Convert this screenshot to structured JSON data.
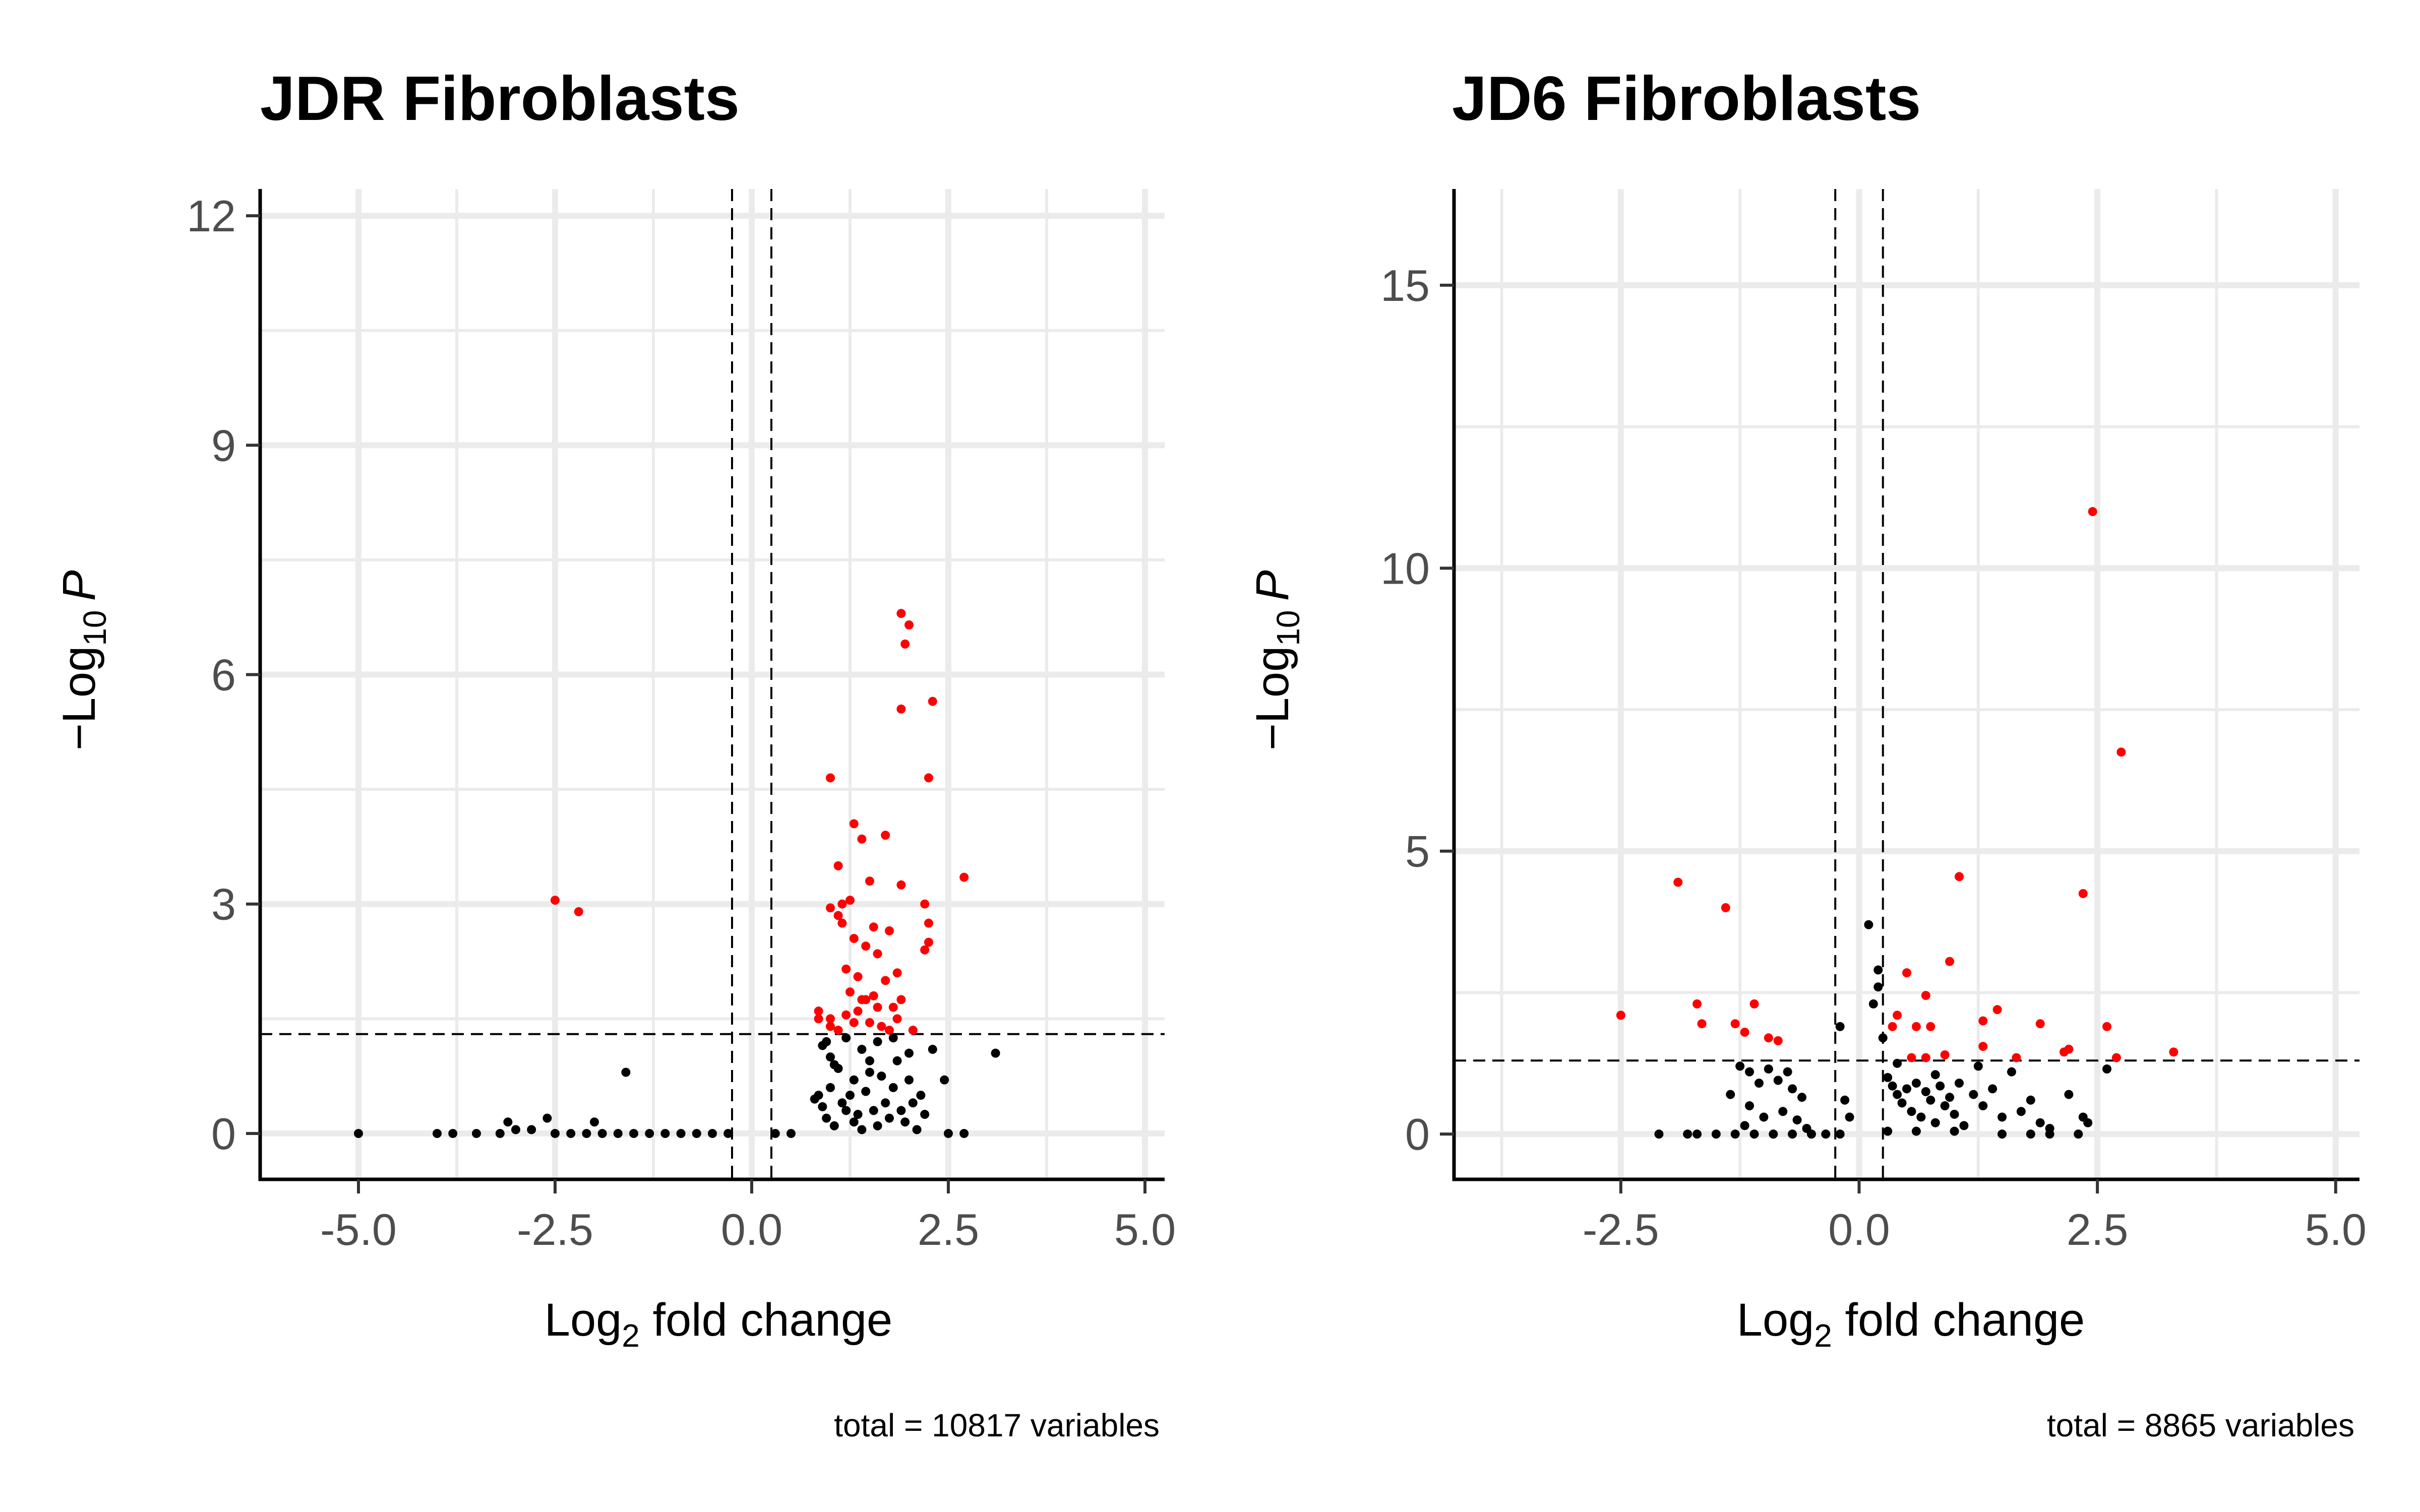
{
  "chart_data": [
    {
      "type": "scatter",
      "title": "JDR Fibroblasts",
      "xlabel_base": "Log",
      "xlabel_sub": "2",
      "xlabel_rest": " fold change",
      "ylabel_prefix": "−Log",
      "ylabel_sub": "10",
      "ylabel_p": "P",
      "caption": "total = 10817 variables",
      "xlim": [
        -6.25,
        5.25
      ],
      "ylim": [
        -0.6,
        12.35
      ],
      "xticks": [
        -5.0,
        -2.5,
        0.0,
        2.5,
        5.0
      ],
      "xtick_labels": [
        "-5.0",
        "-2.5",
        "0.0",
        "2.5",
        "5.0"
      ],
      "yticks": [
        0,
        3,
        6,
        9,
        12
      ],
      "ytick_labels": [
        "0",
        "3",
        "6",
        "9",
        "12"
      ],
      "grid": true,
      "fc_cutoff": 0.25,
      "p_cutoff": 1.3,
      "colors": {
        "significant": "#ff0000",
        "ns": "#000000"
      },
      "series": [
        {
          "points": [
            [
              1.0,
              4.65
            ],
            [
              1.1,
              3.5
            ],
            [
              1.15,
              3.0
            ],
            [
              1.3,
              4.05
            ],
            [
              1.4,
              3.85
            ],
            [
              1.9,
              6.8
            ],
            [
              2.0,
              6.65
            ],
            [
              1.95,
              6.4
            ],
            [
              1.9,
              5.55
            ],
            [
              2.3,
              5.65
            ],
            [
              2.25,
              4.65
            ],
            [
              1.7,
              3.9
            ],
            [
              1.5,
              3.3
            ],
            [
              1.9,
              3.25
            ],
            [
              1.25,
              3.05
            ],
            [
              1.0,
              2.95
            ],
            [
              1.1,
              2.85
            ],
            [
              1.15,
              2.75
            ],
            [
              1.3,
              2.55
            ],
            [
              1.45,
              2.45
            ],
            [
              1.55,
              2.7
            ],
            [
              1.6,
              2.35
            ],
            [
              1.75,
              2.65
            ],
            [
              1.85,
              2.1
            ],
            [
              2.2,
              3.0
            ],
            [
              2.25,
              2.75
            ],
            [
              2.25,
              2.5
            ],
            [
              2.2,
              2.4
            ],
            [
              2.7,
              3.35
            ],
            [
              1.2,
              2.15
            ],
            [
              1.35,
              2.05
            ],
            [
              1.45,
              1.75
            ],
            [
              1.55,
              1.8
            ],
            [
              1.7,
              2.0
            ],
            [
              1.8,
              1.65
            ],
            [
              1.9,
              1.75
            ],
            [
              1.25,
              1.85
            ],
            [
              1.35,
              1.6
            ],
            [
              0.85,
              1.6
            ],
            [
              0.85,
              1.5
            ],
            [
              1.0,
              1.4
            ],
            [
              1.1,
              1.35
            ],
            [
              1.3,
              1.45
            ],
            [
              1.5,
              1.45
            ],
            [
              1.65,
              1.4
            ],
            [
              1.85,
              1.5
            ],
            [
              2.05,
              1.35
            ],
            [
              1.2,
              1.55
            ],
            [
              1.4,
              1.75
            ],
            [
              1.6,
              1.65
            ],
            [
              1.0,
              1.5
            ],
            [
              1.75,
              1.35
            ],
            [
              -2.5,
              3.05
            ],
            [
              -2.2,
              2.9
            ]
          ]
        },
        {
          "points": [
            [
              -5.0,
              0.0
            ],
            [
              -4.0,
              0.0
            ],
            [
              -3.8,
              0.0
            ],
            [
              -3.5,
              0.0
            ],
            [
              -3.2,
              0.0
            ],
            [
              -3.1,
              0.15
            ],
            [
              -3.0,
              0.05
            ],
            [
              -2.8,
              0.05
            ],
            [
              -2.6,
              0.2
            ],
            [
              -2.5,
              0.0
            ],
            [
              -2.3,
              0.0
            ],
            [
              -2.1,
              0.0
            ],
            [
              -1.9,
              0.0
            ],
            [
              -1.7,
              0.0
            ],
            [
              -1.5,
              0.0
            ],
            [
              -1.3,
              0.0
            ],
            [
              -1.1,
              0.0
            ],
            [
              -0.9,
              0.0
            ],
            [
              -0.7,
              0.0
            ],
            [
              -0.5,
              0.0
            ],
            [
              -0.3,
              0.0
            ],
            [
              -1.6,
              0.8
            ],
            [
              -2.0,
              0.15
            ],
            [
              0.3,
              0.0
            ],
            [
              0.5,
              0.0
            ],
            [
              2.5,
              0.0
            ],
            [
              2.7,
              0.0
            ],
            [
              3.1,
              1.05
            ],
            [
              2.45,
              0.7
            ],
            [
              2.3,
              1.1
            ],
            [
              0.8,
              0.45
            ],
            [
              0.85,
              0.5
            ],
            [
              0.9,
              0.35
            ],
            [
              0.95,
              0.2
            ],
            [
              1.0,
              0.6
            ],
            [
              1.05,
              0.1
            ],
            [
              1.1,
              0.85
            ],
            [
              1.15,
              0.4
            ],
            [
              1.2,
              0.3
            ],
            [
              1.25,
              0.5
            ],
            [
              1.3,
              0.15
            ],
            [
              1.35,
              0.25
            ],
            [
              1.4,
              0.05
            ],
            [
              1.45,
              0.55
            ],
            [
              1.5,
              0.8
            ],
            [
              1.55,
              0.3
            ],
            [
              1.6,
              0.1
            ],
            [
              1.65,
              0.75
            ],
            [
              1.7,
              0.4
            ],
            [
              1.75,
              0.2
            ],
            [
              1.8,
              0.6
            ],
            [
              1.85,
              0.95
            ],
            [
              1.9,
              0.3
            ],
            [
              1.95,
              0.15
            ],
            [
              2.0,
              0.7
            ],
            [
              2.05,
              0.4
            ],
            [
              2.1,
              0.05
            ],
            [
              2.15,
              0.5
            ],
            [
              2.2,
              0.25
            ],
            [
              1.2,
              1.25
            ],
            [
              1.4,
              1.1
            ],
            [
              0.95,
              1.2
            ],
            [
              1.6,
              1.2
            ],
            [
              1.8,
              1.25
            ],
            [
              2.0,
              1.05
            ],
            [
              1.05,
              0.9
            ],
            [
              1.3,
              0.7
            ],
            [
              1.0,
              1.0
            ],
            [
              0.9,
              1.15
            ],
            [
              1.5,
              0.95
            ]
          ]
        }
      ]
    },
    {
      "type": "scatter",
      "title": "JD6 Fibroblasts",
      "xlabel_base": "Log",
      "xlabel_sub": "2",
      "xlabel_rest": " fold change",
      "ylabel_prefix": "−Log",
      "ylabel_sub": "10",
      "ylabel_p": "P",
      "caption": "total = 8865 variables",
      "xlim": [
        -4.25,
        5.25
      ],
      "ylim": [
        -0.8,
        16.7
      ],
      "xticks": [
        -2.5,
        0.0,
        2.5,
        5.0
      ],
      "xtick_labels": [
        "-2.5",
        "0.0",
        "2.5",
        "5.0"
      ],
      "yticks": [
        0,
        5,
        10,
        15
      ],
      "ytick_labels": [
        "0",
        "5",
        "10",
        "15"
      ],
      "grid": true,
      "fc_cutoff": 0.25,
      "p_cutoff": 1.3,
      "colors": {
        "significant": "#ff0000",
        "ns": "#000000"
      },
      "series": [
        {
          "points": [
            [
              2.45,
              11.0
            ],
            [
              2.75,
              6.75
            ],
            [
              2.35,
              4.25
            ],
            [
              1.05,
              4.55
            ],
            [
              3.3,
              1.45
            ],
            [
              0.5,
              2.85
            ],
            [
              0.95,
              3.05
            ],
            [
              0.7,
              2.45
            ],
            [
              0.4,
              2.1
            ],
            [
              0.35,
              1.9
            ],
            [
              0.6,
              1.9
            ],
            [
              0.75,
              1.9
            ],
            [
              1.3,
              2.0
            ],
            [
              1.45,
              2.2
            ],
            [
              1.3,
              1.55
            ],
            [
              1.9,
              1.95
            ],
            [
              2.2,
              1.5
            ],
            [
              2.15,
              1.45
            ],
            [
              2.6,
              1.9
            ],
            [
              0.55,
              1.35
            ],
            [
              0.7,
              1.35
            ],
            [
              0.9,
              1.4
            ],
            [
              1.65,
              1.35
            ],
            [
              2.7,
              1.35
            ],
            [
              -2.5,
              2.1
            ],
            [
              -1.9,
              4.45
            ],
            [
              -1.4,
              4.0
            ],
            [
              -1.7,
              2.3
            ],
            [
              -1.65,
              1.95
            ],
            [
              -1.1,
              2.3
            ],
            [
              -1.3,
              1.95
            ],
            [
              -1.2,
              1.8
            ],
            [
              -0.95,
              1.7
            ],
            [
              -0.85,
              1.65
            ]
          ]
        },
        {
          "points": [
            [
              -2.1,
              0.0
            ],
            [
              -1.8,
              0.0
            ],
            [
              -1.7,
              0.0
            ],
            [
              -1.5,
              0.0
            ],
            [
              -1.3,
              0.0
            ],
            [
              -1.1,
              0.0
            ],
            [
              -0.9,
              0.0
            ],
            [
              -0.7,
              0.0
            ],
            [
              -0.5,
              0.0
            ],
            [
              -0.35,
              0.0
            ],
            [
              -0.2,
              0.0
            ],
            [
              -1.25,
              1.2
            ],
            [
              -1.15,
              1.1
            ],
            [
              -1.05,
              0.9
            ],
            [
              -0.95,
              1.15
            ],
            [
              -0.85,
              0.95
            ],
            [
              -0.75,
              1.1
            ],
            [
              -0.7,
              0.8
            ],
            [
              -0.6,
              0.65
            ],
            [
              -1.35,
              0.7
            ],
            [
              -1.15,
              0.5
            ],
            [
              -1.0,
              0.3
            ],
            [
              -0.8,
              0.4
            ],
            [
              -0.65,
              0.25
            ],
            [
              -1.2,
              0.15
            ],
            [
              -0.55,
              0.1
            ],
            [
              -0.2,
              1.9
            ],
            [
              -0.15,
              0.6
            ],
            [
              -0.1,
              0.3
            ],
            [
              0.1,
              3.7
            ],
            [
              0.2,
              2.9
            ],
            [
              0.2,
              2.6
            ],
            [
              0.15,
              2.3
            ],
            [
              0.25,
              1.7
            ],
            [
              0.3,
              1.0
            ],
            [
              0.35,
              0.85
            ],
            [
              0.4,
              0.7
            ],
            [
              0.45,
              0.55
            ],
            [
              0.5,
              0.8
            ],
            [
              0.55,
              0.4
            ],
            [
              0.6,
              0.9
            ],
            [
              0.65,
              0.3
            ],
            [
              0.7,
              0.75
            ],
            [
              0.75,
              0.6
            ],
            [
              0.8,
              0.2
            ],
            [
              0.85,
              0.85
            ],
            [
              0.9,
              0.5
            ],
            [
              0.95,
              0.65
            ],
            [
              1.0,
              0.35
            ],
            [
              1.05,
              0.9
            ],
            [
              1.1,
              0.15
            ],
            [
              1.2,
              0.7
            ],
            [
              1.3,
              0.5
            ],
            [
              1.4,
              0.8
            ],
            [
              1.5,
              0.3
            ],
            [
              1.6,
              1.1
            ],
            [
              1.7,
              0.4
            ],
            [
              1.8,
              0.6
            ],
            [
              1.9,
              0.2
            ],
            [
              2.0,
              0.1
            ],
            [
              2.2,
              0.7
            ],
            [
              2.4,
              0.2
            ],
            [
              2.6,
              1.15
            ],
            [
              2.35,
              0.3
            ],
            [
              0.3,
              0.05
            ],
            [
              0.6,
              0.05
            ],
            [
              1.0,
              0.05
            ],
            [
              1.5,
              0.0
            ],
            [
              1.8,
              0.0
            ],
            [
              2.0,
              0.0
            ],
            [
              2.3,
              0.0
            ],
            [
              0.8,
              1.05
            ],
            [
              1.25,
              1.2
            ],
            [
              0.4,
              1.25
            ]
          ]
        }
      ]
    }
  ]
}
